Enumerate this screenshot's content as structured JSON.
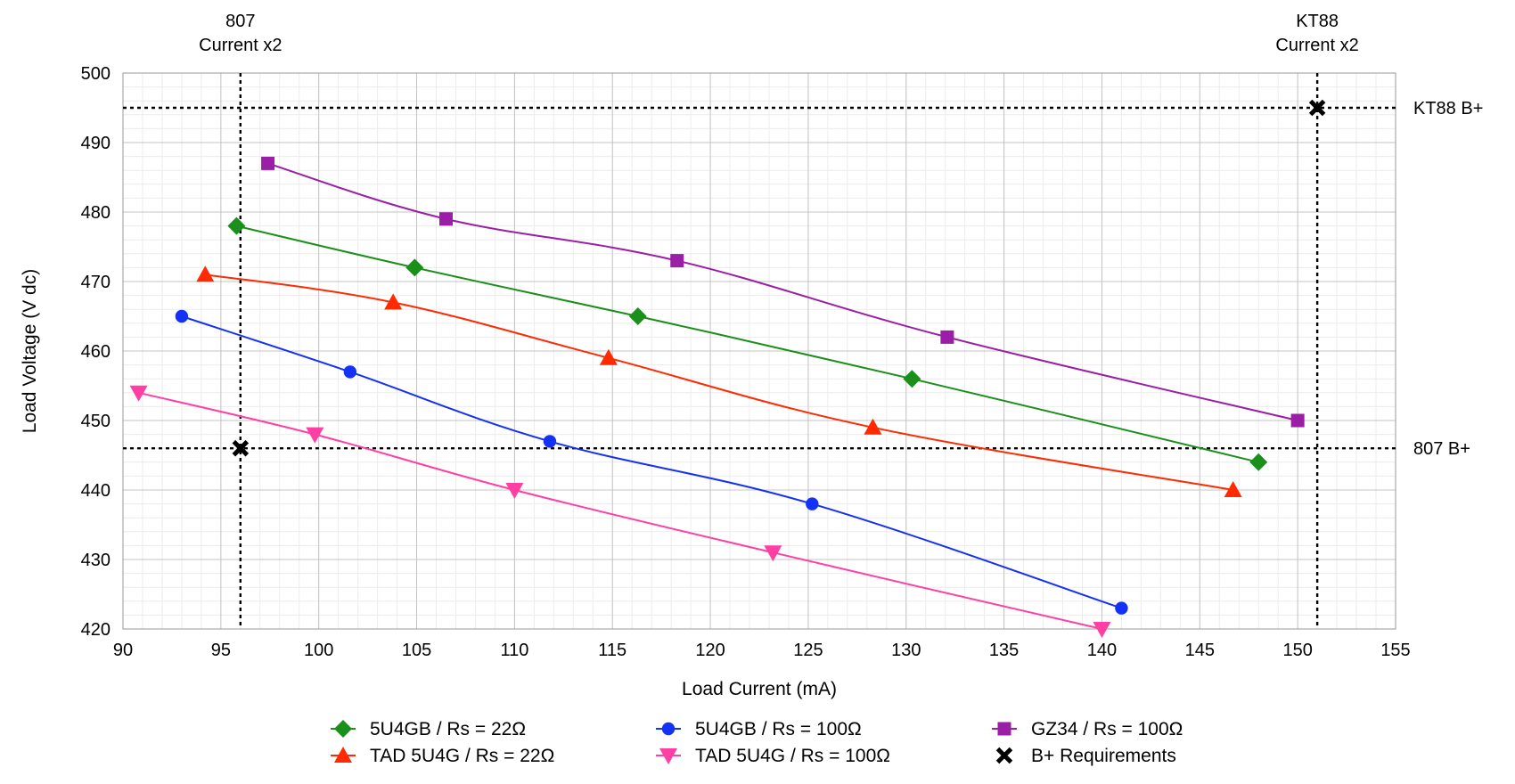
{
  "chart_data": {
    "type": "line",
    "title": "",
    "xlabel": "Load Current (mA)",
    "ylabel": "Load Voltage (V dc)",
    "xlim": [
      90,
      155
    ],
    "ylim": [
      420,
      500
    ],
    "x_ticks": [
      90,
      95,
      100,
      105,
      110,
      115,
      120,
      125,
      130,
      135,
      140,
      145,
      150,
      155
    ],
    "y_ticks": [
      420,
      430,
      440,
      450,
      460,
      470,
      480,
      490,
      500
    ],
    "grid": true,
    "minor_grid": true,
    "legend_position": "bottom",
    "series": [
      {
        "name": "5U4GB / Rs = 22Ω",
        "color": "#1a8f1a",
        "marker": "diamond",
        "x": [
          95.8,
          104.9,
          116.3,
          130.3,
          148.0
        ],
        "y": [
          478,
          472,
          465,
          456,
          444
        ]
      },
      {
        "name": "TAD 5U4G / Rs = 22Ω",
        "color": "#ff2a00",
        "marker": "triangle-up",
        "x": [
          94.2,
          103.8,
          114.8,
          128.3,
          146.7
        ],
        "y": [
          471,
          467,
          459,
          449,
          440
        ]
      },
      {
        "name": "5U4GB / Rs = 100Ω",
        "color": "#1432f5",
        "marker": "circle",
        "x": [
          93.0,
          101.6,
          111.8,
          125.2,
          141.0
        ],
        "y": [
          465,
          457,
          447,
          438,
          423
        ]
      },
      {
        "name": "TAD 5U4G / Rs = 100Ω",
        "color": "#ff3fa4",
        "marker": "triangle-down",
        "x": [
          90.8,
          99.8,
          110.0,
          123.2,
          140.0
        ],
        "y": [
          454,
          448,
          440,
          431,
          420
        ]
      },
      {
        "name": "GZ34 / Rs = 100Ω",
        "color": "#9b1fa6",
        "marker": "square",
        "x": [
          97.4,
          106.5,
          118.3,
          132.1,
          150.0
        ],
        "y": [
          487,
          479,
          473,
          462,
          450
        ]
      },
      {
        "name": "B+ Requirements",
        "color": "#000000",
        "marker": "x",
        "line": false,
        "x": [
          96.0,
          151.0
        ],
        "y": [
          446,
          495
        ]
      }
    ],
    "reference_lines": {
      "vertical": [
        {
          "x": 96,
          "label_lines": [
            "807",
            "Current x2"
          ]
        },
        {
          "x": 151,
          "label_lines": [
            "KT88",
            "Current x2"
          ]
        }
      ],
      "horizontal": [
        {
          "y": 495,
          "label": "KT88 B+"
        },
        {
          "y": 446,
          "label": "807 B+"
        }
      ]
    }
  }
}
